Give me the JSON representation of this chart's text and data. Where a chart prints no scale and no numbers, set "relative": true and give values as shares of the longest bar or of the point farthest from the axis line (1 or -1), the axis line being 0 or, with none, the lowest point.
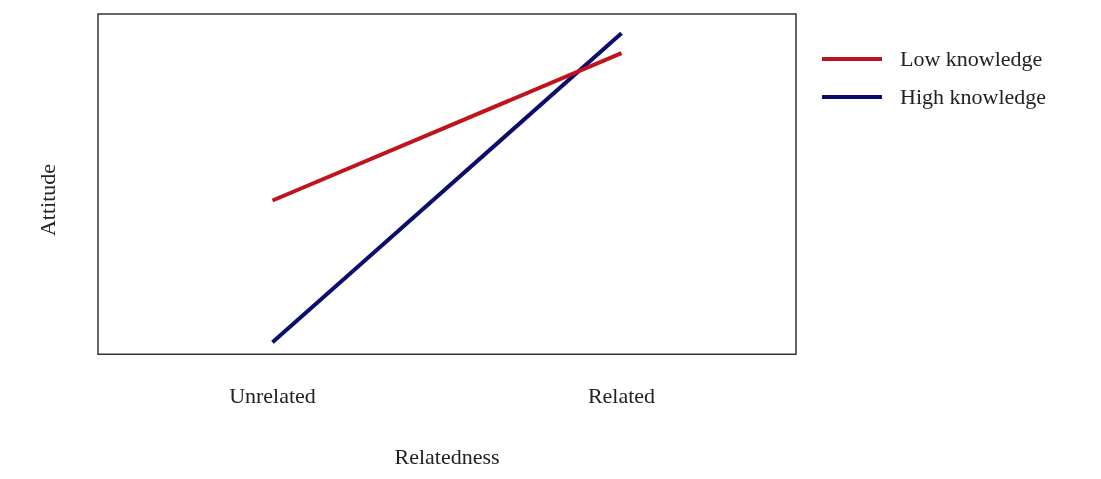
{
  "chart_data": {
    "type": "line",
    "relative": true,
    "xlabel": "Relatedness",
    "ylabel": "Attitude",
    "categories": [
      "Unrelated",
      "Related"
    ],
    "legend": "top right",
    "grid": false,
    "marker": "none",
    "line_style": "solid",
    "series": [
      {
        "name": "Low knowledge",
        "color": "#c0141c",
        "values": [
          0.479,
          0.938
        ]
      },
      {
        "name": "High knowledge",
        "color": "#0c0c6e",
        "values": [
          0.037,
          1
        ]
      }
    ]
  }
}
